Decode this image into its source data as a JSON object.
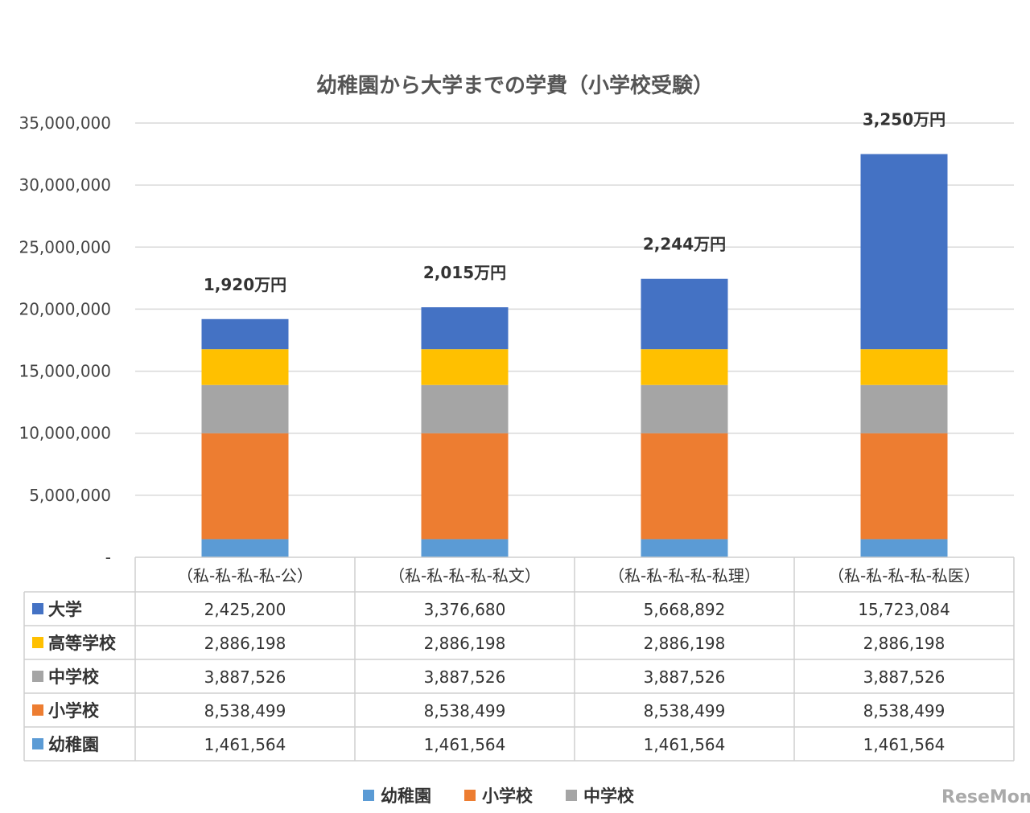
{
  "chart_data": {
    "type": "bar",
    "stacked": true,
    "title": "幼稚園から大学までの学費（小学校受験）",
    "categories": [
      "（私-私-私-私-公）",
      "（私-私-私-私-私文）",
      "（私-私-私-私-私理）",
      "（私-私-私-私-私医）"
    ],
    "totals": [
      "1,920万円",
      "2,015万円",
      "2,244万円",
      "3,250万円"
    ],
    "ylim": [
      0,
      35000000
    ],
    "yticks": [
      0,
      5000000,
      10000000,
      15000000,
      20000000,
      25000000,
      30000000,
      35000000
    ],
    "ytick_labels": [
      "-",
      "5,000,000",
      "10,000,000",
      "15,000,000",
      "20,000,000",
      "25,000,000",
      "30,000,000",
      "35,000,000"
    ],
    "grid": true,
    "series": [
      {
        "name": "幼稚園",
        "color": "#5B9BD5",
        "values": [
          1461564,
          1461564,
          1461564,
          1461564
        ],
        "labels": [
          "1,461,564",
          "1,461,564",
          "1,461,564",
          "1,461,564"
        ]
      },
      {
        "name": "小学校",
        "color": "#ED7D31",
        "values": [
          8538499,
          8538499,
          8538499,
          8538499
        ],
        "labels": [
          "8,538,499",
          "8,538,499",
          "8,538,499",
          "8,538,499"
        ]
      },
      {
        "name": "中学校",
        "color": "#A5A5A5",
        "values": [
          3887526,
          3887526,
          3887526,
          3887526
        ],
        "labels": [
          "3,887,526",
          "3,887,526",
          "3,887,526",
          "3,887,526"
        ]
      },
      {
        "name": "高等学校",
        "color": "#FFC000",
        "values": [
          2886198,
          2886198,
          2886198,
          2886198
        ],
        "labels": [
          "2,886,198",
          "2,886,198",
          "2,886,198",
          "2,886,198"
        ]
      },
      {
        "name": "大学",
        "color": "#4472C4",
        "values": [
          2425200,
          3376680,
          5668892,
          15723084
        ],
        "labels": [
          "2,425,200",
          "3,376,680",
          "5,668,892",
          "15,723,084"
        ]
      }
    ],
    "legend_visible": [
      "幼稚園",
      "小学校",
      "中学校"
    ],
    "legend_position": "bottom"
  },
  "watermark": "ReseMom"
}
